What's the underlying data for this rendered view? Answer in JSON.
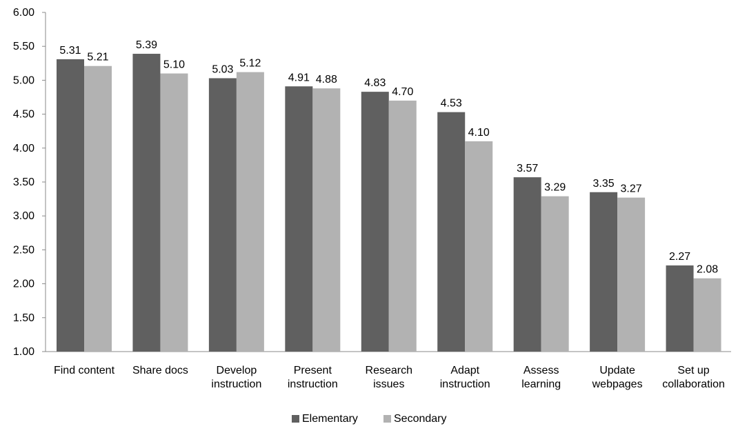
{
  "chart_data": {
    "type": "bar",
    "title": "",
    "xlabel": "",
    "ylabel": "",
    "ylim": [
      1.0,
      6.0
    ],
    "ytick_step": 0.5,
    "yticks": [
      "1.00",
      "1.50",
      "2.00",
      "2.50",
      "3.00",
      "3.50",
      "4.00",
      "4.50",
      "5.00",
      "5.50",
      "6.00"
    ],
    "grid": false,
    "legend_position": "bottom",
    "categories": [
      [
        "Find content"
      ],
      [
        "Share docs"
      ],
      [
        "Develop",
        "instruction"
      ],
      [
        "Present",
        "instruction"
      ],
      [
        "Research",
        "issues"
      ],
      [
        "Adapt",
        "instruction"
      ],
      [
        "Assess",
        "learning"
      ],
      [
        "Update",
        "webpages"
      ],
      [
        "Set up",
        "collaboration"
      ]
    ],
    "series": [
      {
        "name": "Elementary",
        "color": "#606060",
        "values": [
          5.31,
          5.39,
          5.03,
          4.91,
          4.83,
          4.53,
          3.57,
          3.35,
          2.27
        ],
        "labels": [
          "5.31",
          "5.39",
          "5.03",
          "4.91",
          "4.83",
          "4.53",
          "3.57",
          "3.35",
          "2.27"
        ]
      },
      {
        "name": "Secondary",
        "color": "#b2b2b2",
        "values": [
          5.21,
          5.1,
          5.12,
          4.88,
          4.7,
          4.1,
          3.29,
          3.27,
          2.08
        ],
        "labels": [
          "5.21",
          "5.10",
          "5.12",
          "4.88",
          "4.70",
          "4.10",
          "3.29",
          "3.27",
          "2.08"
        ]
      }
    ]
  }
}
